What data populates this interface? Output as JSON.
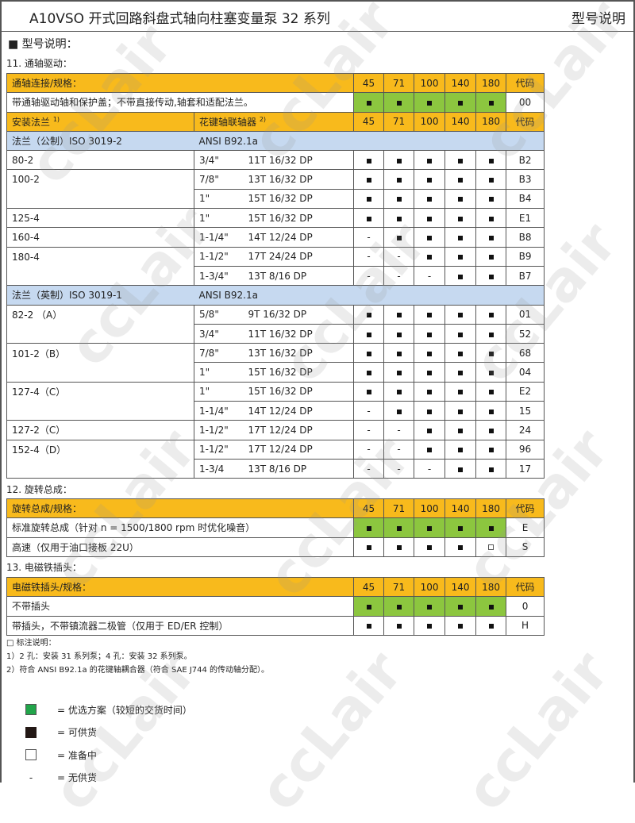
{
  "header": {
    "title": "A10VSO 开式回路斜盘式轴向柱塞变量泵  32 系列",
    "right": "型号说明"
  },
  "heading": "■ 型号说明：",
  "sizes": [
    "45",
    "71",
    "100",
    "140",
    "180"
  ],
  "code_label": "代码",
  "colors": {
    "header": "#f8ba1c",
    "group": "#c6d9f0",
    "preferred": "#8cc63f"
  },
  "s11": {
    "title": "11. 通轴驱动：",
    "header": "通轴连接/规格：",
    "row": {
      "label": "带通轴驱动轴和保护盖；不带直接传动,轴套和适配法兰。",
      "avail": [
        "f",
        "f",
        "f",
        "f",
        "f"
      ],
      "green": true,
      "code": "00"
    },
    "h2": {
      "flange": "安装法兰",
      "flange_sup": "1)",
      "spline": "花键轴联轴器",
      "spline_sup": "2)"
    },
    "groups": [
      {
        "flange": "法兰（公制）ISO 3019-2",
        "spline": "ANSI B92.1a",
        "rows": [
          {
            "flange": "80-2",
            "size": "3/4\"",
            "spec": "11T 16/32 DP",
            "avail": [
              "f",
              "f",
              "f",
              "f",
              "f"
            ],
            "code": "B2"
          },
          {
            "flange": "100-2",
            "size": "7/8\"",
            "spec": "13T 16/32 DP",
            "avail": [
              "f",
              "f",
              "f",
              "f",
              "f"
            ],
            "code": "B3"
          },
          {
            "flange": "",
            "size": "1\"",
            "spec": "15T 16/32 DP",
            "avail": [
              "f",
              "f",
              "f",
              "f",
              "f"
            ],
            "code": "B4"
          },
          {
            "flange": "125-4",
            "size": "1\"",
            "spec": "15T 16/32 DP",
            "avail": [
              "f",
              "f",
              "f",
              "f",
              "f"
            ],
            "code": "E1"
          },
          {
            "flange": "160-4",
            "size": "1-1/4\"",
            "spec": "14T 12/24 DP",
            "avail": [
              "-",
              "f",
              "f",
              "f",
              "f"
            ],
            "code": "B8"
          },
          {
            "flange": "180-4",
            "size": "1-1/2\"",
            "spec": "17T 24/24 DP",
            "avail": [
              "-",
              "-",
              "f",
              "f",
              "f"
            ],
            "code": "B9"
          },
          {
            "flange": "",
            "size": "1-3/4\"",
            "spec": "13T 8/16 DP",
            "avail": [
              "-",
              "-",
              "-",
              "f",
              "f"
            ],
            "code": "B7"
          }
        ]
      },
      {
        "flange": "法兰（英制）ISO 3019-1",
        "spline": "ANSI B92.1a",
        "rows": [
          {
            "flange": "82-2 （A）",
            "size": "5/8\"",
            "spec": "9T 16/32 DP",
            "avail": [
              "f",
              "f",
              "f",
              "f",
              "f"
            ],
            "code": "01"
          },
          {
            "flange": "",
            "size": "3/4\"",
            "spec": "11T 16/32 DP",
            "avail": [
              "f",
              "f",
              "f",
              "f",
              "f"
            ],
            "code": "52"
          },
          {
            "flange": "101-2（B）",
            "size": "7/8\"",
            "spec": "13T 16/32 DP",
            "avail": [
              "f",
              "f",
              "f",
              "f",
              "f"
            ],
            "code": "68"
          },
          {
            "flange": "",
            "size": "1\"",
            "spec": "15T 16/32 DP",
            "avail": [
              "f",
              "f",
              "f",
              "f",
              "f"
            ],
            "code": "04"
          },
          {
            "flange": "127-4（C）",
            "size": "1\"",
            "spec": "15T 16/32 DP",
            "avail": [
              "f",
              "f",
              "f",
              "f",
              "f"
            ],
            "code": "E2"
          },
          {
            "flange": "",
            "size": "1-1/4\"",
            "spec": "14T 12/24 DP",
            "avail": [
              "-",
              "f",
              "f",
              "f",
              "f"
            ],
            "code": "15"
          },
          {
            "flange": "127-2（C）",
            "size": "1-1/2\"",
            "spec": "17T 12/24 DP",
            "avail": [
              "-",
              "-",
              "f",
              "f",
              "f"
            ],
            "code": "24"
          },
          {
            "flange": "152-4（D）",
            "size": "1-1/2\"",
            "spec": "17T 12/24 DP",
            "avail": [
              "-",
              "-",
              "f",
              "f",
              "f"
            ],
            "code": "96"
          },
          {
            "flange": "",
            "size": "1-3/4",
            "spec": "13T 8/16 DP",
            "avail": [
              "-",
              "-",
              "-",
              "f",
              "f"
            ],
            "code": "17"
          }
        ]
      }
    ]
  },
  "s12": {
    "title": "12. 旋转总成：",
    "header": "旋转总成/规格：",
    "rows": [
      {
        "label": "标准旋转总成（针对 n = 1500/1800 rpm 时优化噪音）",
        "avail": [
          "f",
          "f",
          "f",
          "f",
          "f"
        ],
        "green": true,
        "code": "E"
      },
      {
        "label": "高速（仅用于油口接板  22U）",
        "avail": [
          "f",
          "f",
          "f",
          "f",
          "o"
        ],
        "green": false,
        "code": "S"
      }
    ]
  },
  "s13": {
    "title": "13. 电磁铁插头：",
    "header": "电磁铁插头/规格：",
    "rows": [
      {
        "label": "不带插头",
        "avail": [
          "f",
          "f",
          "f",
          "f",
          "f"
        ],
        "green": true,
        "code": "0"
      },
      {
        "label": "带插头，不带镇流器二极管（仅用于 ED/ER 控制）",
        "avail": [
          "f",
          "f",
          "f",
          "f",
          "f"
        ],
        "green": false,
        "code": "H"
      }
    ]
  },
  "notes": [
    "□ 标注说明：",
    "1）2 孔：安装 31 系列泵；4 孔：安装 32 系列泵。",
    "2）符合 ANSI B92.1a 的花键轴耦合器（符合 SAE J744 的传动轴分配）。"
  ],
  "legend": [
    {
      "icon": "green-square",
      "text": "=  优选方案（较短的交货时间）"
    },
    {
      "icon": "black-square",
      "text": "=  可供货"
    },
    {
      "icon": "open-square",
      "text": "=  准备中"
    },
    {
      "icon": "dash",
      "text": "=  无供货"
    }
  ],
  "watermark": "ccLair"
}
